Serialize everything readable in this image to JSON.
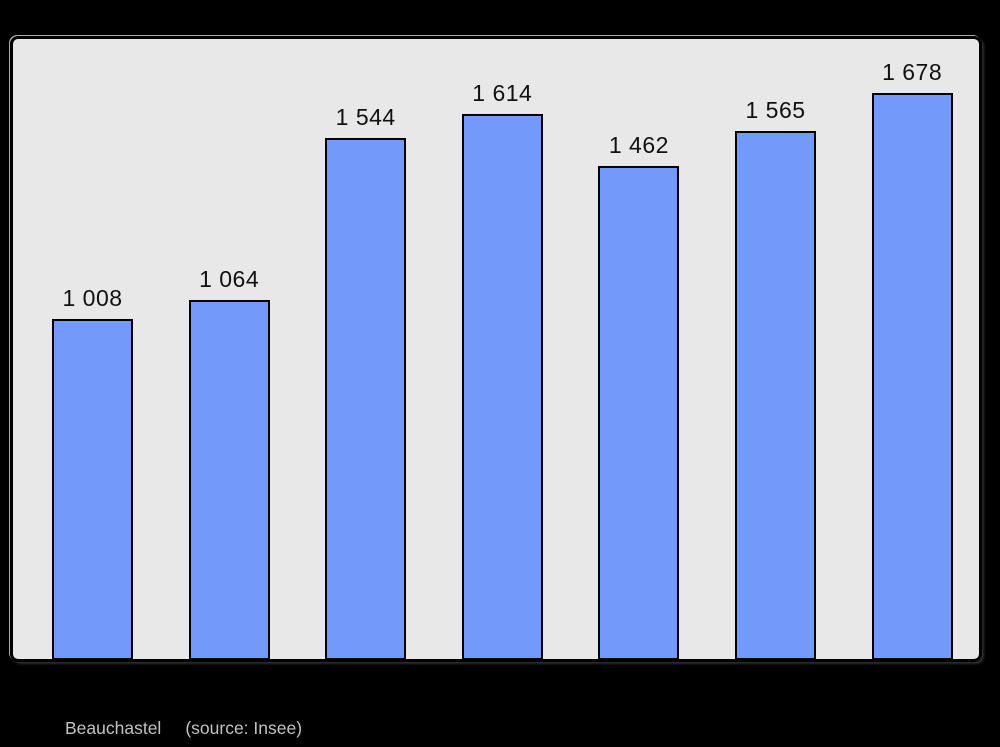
{
  "chart_data": {
    "type": "bar",
    "values": [
      1008,
      1064,
      1544,
      1614,
      1462,
      1565,
      1678
    ],
    "bar_labels": [
      "1 008",
      "1 064",
      "1 544",
      "1 614",
      "1 462",
      "1 565",
      "1 678"
    ],
    "title": "",
    "xlabel": "",
    "ylabel": "",
    "ylim": [
      0,
      1843
    ],
    "grid": false,
    "legend": false,
    "axes_ticks_visible": false,
    "bar_color": "#7399FB",
    "bar_border_color": "#000000",
    "plot_background": "#E8E8E8",
    "page_background": "#000000",
    "value_label_color": "#111111"
  },
  "caption": {
    "commune": "Beauchastel",
    "source": "(source: Insee)",
    "color": "#C2C2C2"
  }
}
